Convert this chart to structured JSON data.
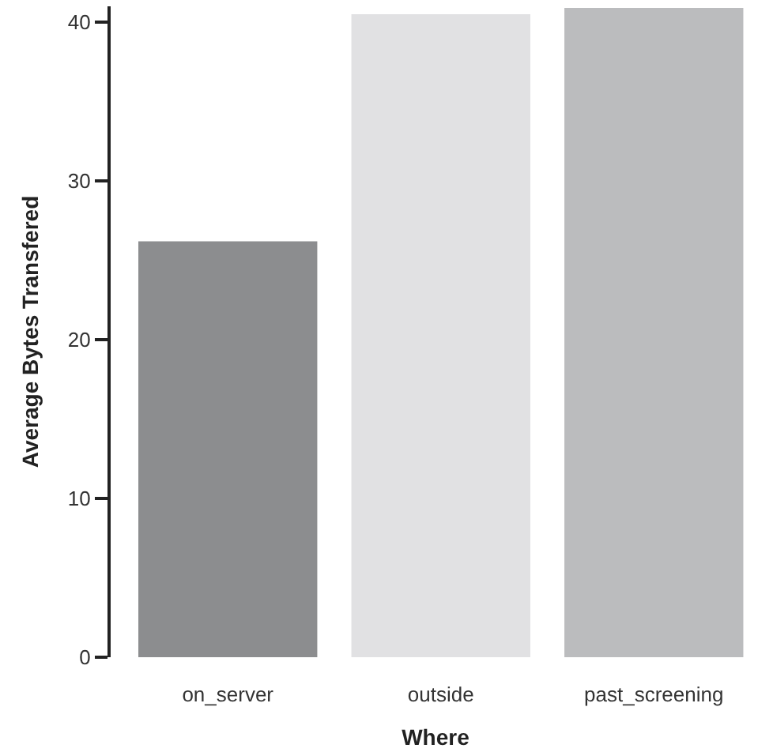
{
  "chart_data": {
    "type": "bar",
    "xlabel": "Where",
    "ylabel": "Average Bytes Transfered",
    "categories": [
      "on_server",
      "outside",
      "past_screening"
    ],
    "values": [
      26.2,
      40.5,
      40.9
    ],
    "colors": [
      "#8c8d8f",
      "#e1e1e3",
      "#bbbcbe"
    ],
    "ylim": [
      0,
      41
    ],
    "yticks": [
      0,
      10,
      20,
      30,
      40
    ]
  }
}
